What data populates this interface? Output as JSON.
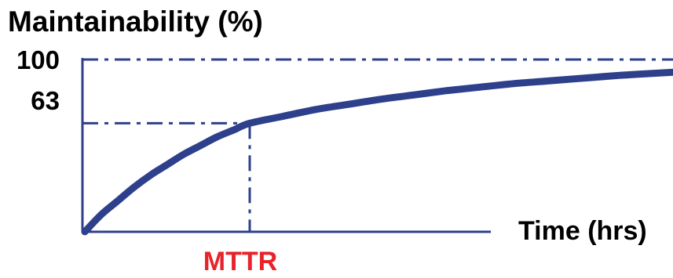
{
  "chart_data": {
    "type": "line",
    "title": "",
    "ylabel": "Maintainability (%)",
    "xlabel": "Time (hrs)",
    "ylim": [
      0,
      100
    ],
    "xlim": [
      0,
      4.8
    ],
    "y_ticks": [
      {
        "value": 100,
        "label": "100"
      },
      {
        "value": 63,
        "label": "63"
      }
    ],
    "x_markers": [
      {
        "value": 1,
        "label": "MTTR"
      }
    ],
    "reference_lines": [
      {
        "axis": "y",
        "value": 100,
        "style": "dash-dot"
      },
      {
        "axis": "y",
        "value": 63,
        "style": "dash-dot"
      },
      {
        "axis": "x",
        "value": 1,
        "style": "dash-dot"
      }
    ],
    "series": [
      {
        "x": [
          0,
          0.1,
          0.2,
          0.3,
          0.4,
          0.5,
          0.6,
          0.7,
          0.8,
          0.9,
          1.0,
          1.2,
          1.4,
          1.6,
          1.8,
          2.0,
          2.2,
          2.4,
          2.6,
          2.8,
          3.0,
          3.2,
          3.4,
          3.6,
          3.8,
          4.0,
          4.2,
          4.4,
          4.6,
          4.8
        ],
        "y": [
          0,
          10,
          18,
          26,
          33,
          39,
          45,
          50,
          55,
          59,
          63,
          67,
          71,
          74,
          77,
          79.5,
          82,
          84,
          86,
          87.5,
          89,
          90.5,
          91.7,
          92.8,
          93.8,
          94.7,
          95.5,
          96.2,
          96.8,
          97.3
        ]
      }
    ],
    "colors": {
      "curve": "#2e3f8c",
      "axes": "#2e3f8c",
      "marker_label": "#e8232a",
      "text": "#000000"
    }
  }
}
